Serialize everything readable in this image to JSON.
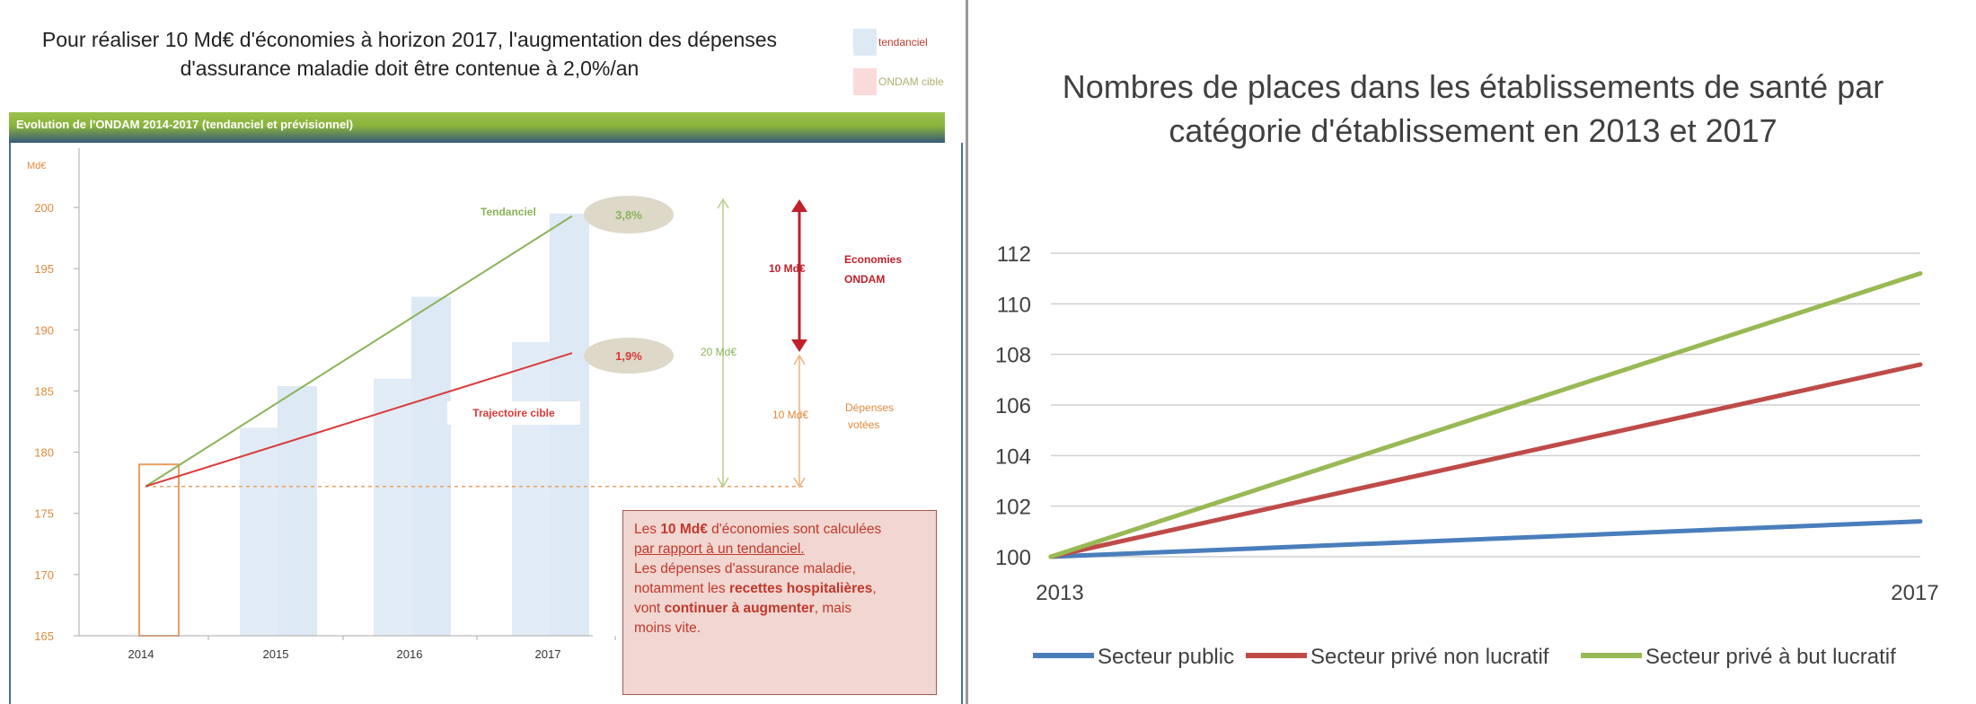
{
  "left": {
    "title": "Pour réaliser 10 Md€ d'économies à horizon 2017, l'augmentation des dépenses d'assurance maladie doit être contenue à 2,0%/an",
    "legend": [
      {
        "label": "tendanciel",
        "color": "#dde9f5"
      },
      {
        "label": "ONDAM cible",
        "color": "#f9dcda"
      }
    ],
    "header": "Evolution de l'ONDAM 2014-2017 (tendanciel et prévisionnel)",
    "note": {
      "l1a": "Les ",
      "l1b": "10 Md€",
      "l1c": " d'économies sont calculées",
      "l2": "par rapport à un tendanciel.",
      "l3": "Les dépenses d'assurance maladie,",
      "l4a": "notamment les ",
      "l4b": "recettes hospitalières",
      "l5a": "vont ",
      "l5b": "continuer à augmenter",
      "l5c": ", mais",
      "l6": "moins vite."
    }
  },
  "right": {
    "title": "Nombres de places dans les établissements de santé par catégorie d'établissement en 2013 et 2017"
  },
  "chart_data": [
    {
      "type": "bar",
      "title": "Evolution de l'ONDAM 2014-2017 (tendanciel et prévisionnel)",
      "ylabel": "Md€",
      "ylim": [
        165,
        205
      ],
      "yticks": [
        165,
        170,
        175,
        180,
        185,
        190,
        195,
        200
      ],
      "categories": [
        "2014",
        "2015",
        "2016",
        "2017"
      ],
      "series": [
        {
          "name": "tendanciel",
          "values": [
            179,
            185.4,
            192.7,
            199.5
          ],
          "color": "#dde9f5"
        },
        {
          "name": "ONDAM cible",
          "values": [
            179,
            182,
            186,
            189
          ],
          "color": "#f9dcda"
        }
      ],
      "lines": [
        {
          "name": "Tendanciel",
          "from": 177.2,
          "to": 199.3,
          "color": "#8bb35a"
        },
        {
          "name": "Trajectoire cible",
          "from": 177.2,
          "to": 188.1,
          "color": "#d93a3a"
        }
      ],
      "annotations": {
        "rate_tendanciel": "3,8%",
        "rate_cible": "1,9%",
        "economies_value": "10 Md€",
        "economies_label": "Economies ONDAM",
        "total_value": "20 Md€",
        "depenses_value": "10 Md€",
        "depenses_label": "Dépenses votées"
      }
    },
    {
      "type": "line",
      "title": "Nombres de places dans les établissements de santé par catégorie d'établissement en 2013 et 2017",
      "categories": [
        "2013",
        "2017"
      ],
      "ylim": [
        100,
        112
      ],
      "yticks": [
        100,
        102,
        104,
        106,
        108,
        110,
        112
      ],
      "grid": true,
      "legend": "bottom",
      "series": [
        {
          "name": "Secteur public",
          "values": [
            100,
            101.4
          ],
          "color": "#4a7ebb"
        },
        {
          "name": "Secteur privé non lucratif",
          "values": [
            100,
            107.6
          ],
          "color": "#be4b48"
        },
        {
          "name": "Secteur privé à but lucratif",
          "values": [
            100,
            111.2
          ],
          "color": "#98b954"
        }
      ]
    }
  ]
}
